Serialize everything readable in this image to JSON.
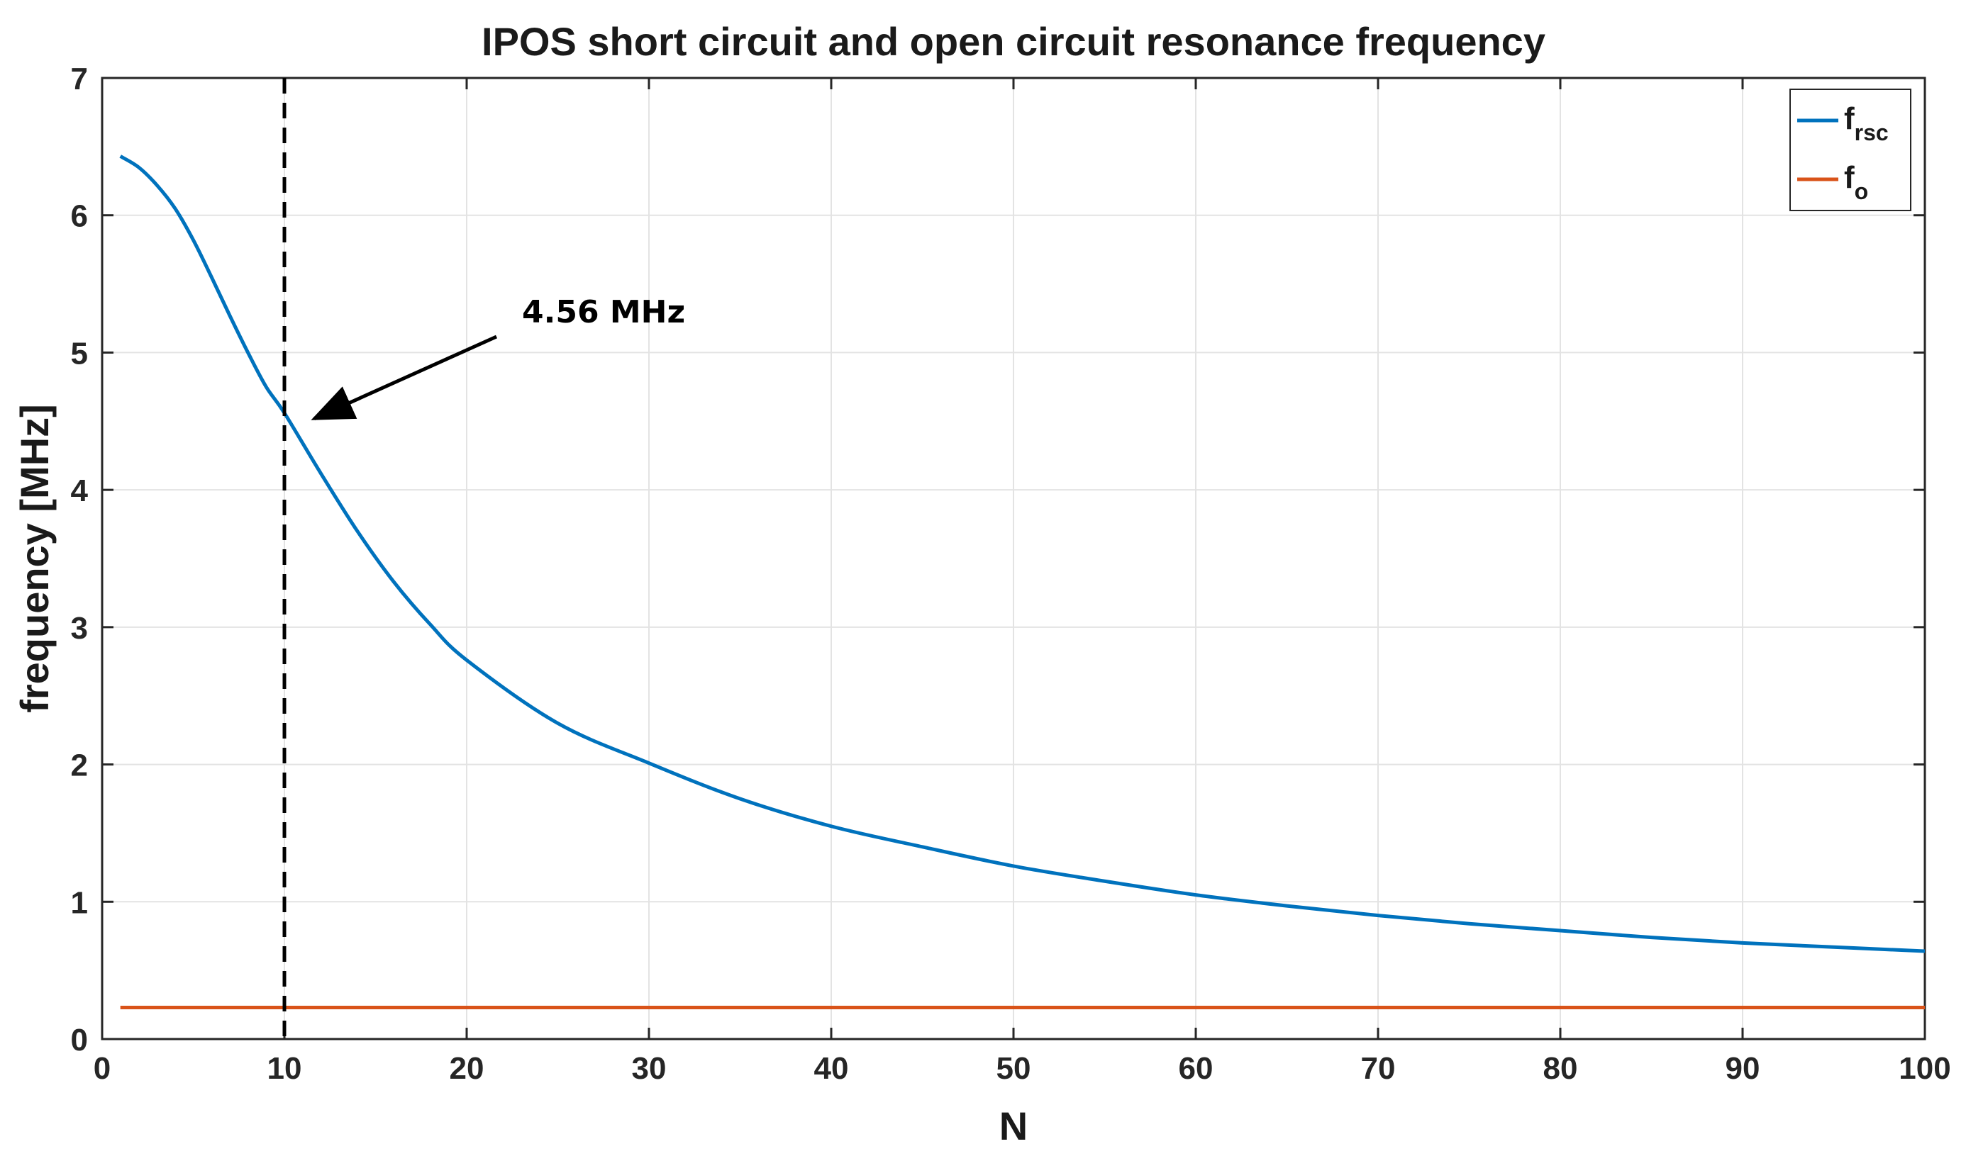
{
  "chart_data": {
    "type": "line",
    "title": "IPOS short circuit and open circuit resonance frequency",
    "xlabel": "N",
    "ylabel": "frequency [MHz]",
    "xlim": [
      0,
      100
    ],
    "ylim": [
      0,
      7
    ],
    "x_ticks": [
      "0",
      "10",
      "20",
      "30",
      "40",
      "50",
      "60",
      "70",
      "80",
      "90",
      "100"
    ],
    "y_ticks": [
      "0",
      "1",
      "2",
      "3",
      "4",
      "5",
      "6",
      "7"
    ],
    "grid": true,
    "legend_position": "top-right",
    "series": [
      {
        "name": "f",
        "subscript": "rsc",
        "color": "#0072BD",
        "x": [
          1,
          2,
          3,
          4,
          5,
          6,
          7,
          8,
          9,
          10,
          12,
          14,
          16,
          18,
          20,
          25,
          30,
          35,
          40,
          45,
          50,
          55,
          60,
          65,
          70,
          75,
          80,
          85,
          90,
          95,
          100
        ],
        "y": [
          6.43,
          6.35,
          6.22,
          6.05,
          5.82,
          5.55,
          5.27,
          5.0,
          4.75,
          4.56,
          4.12,
          3.7,
          3.33,
          3.02,
          2.76,
          2.3,
          2.01,
          1.75,
          1.55,
          1.4,
          1.26,
          1.15,
          1.05,
          0.97,
          0.9,
          0.84,
          0.79,
          0.74,
          0.7,
          0.67,
          0.64
        ]
      },
      {
        "name": "f",
        "subscript": "o",
        "color": "#D95319",
        "x": [
          1,
          100
        ],
        "y": [
          0.23,
          0.23
        ]
      }
    ],
    "vline": {
      "x": 10,
      "style": "dashed",
      "color": "#000000"
    },
    "annotation": {
      "text": "4.56 MHz",
      "point_x": 10,
      "point_y": 4.56
    }
  }
}
